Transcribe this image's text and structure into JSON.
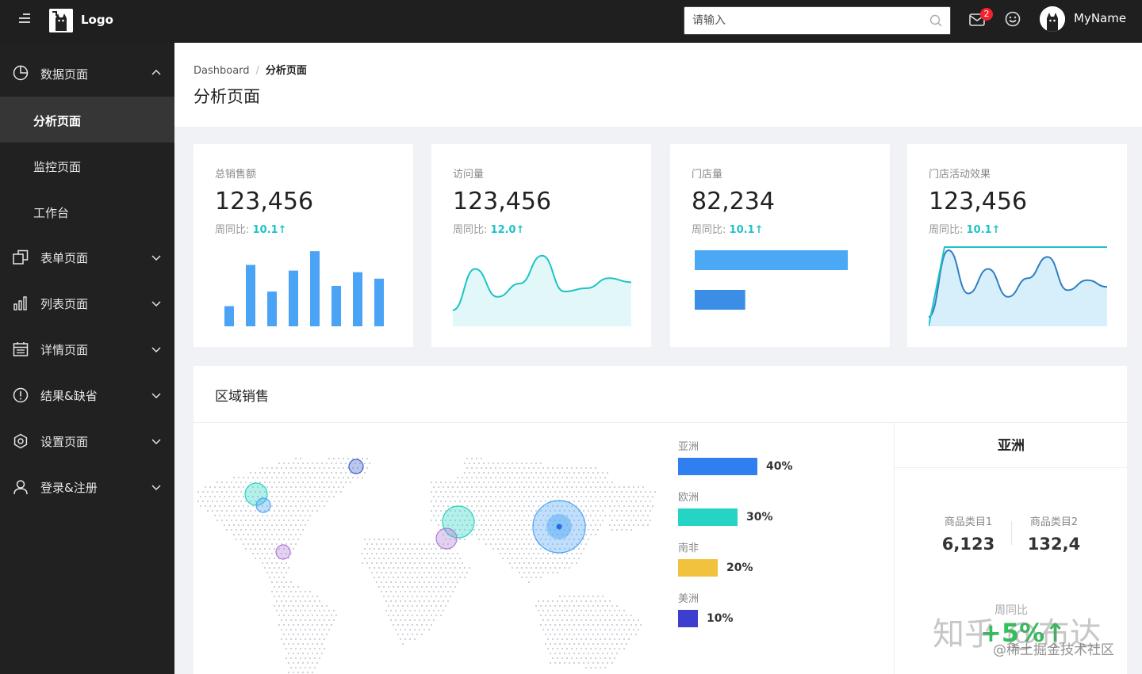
{
  "header": {
    "logo_text": "Logo",
    "search_placeholder": "请输入",
    "notification_count": "2",
    "username": "MyName"
  },
  "sidebar": {
    "items": [
      {
        "label": "数据页面",
        "icon": "pie-chart-icon",
        "expanded": true,
        "children": [
          {
            "label": "分析页面",
            "active": true
          },
          {
            "label": "监控页面",
            "active": false
          },
          {
            "label": "工作台",
            "active": false
          }
        ]
      },
      {
        "label": "表单页面",
        "icon": "form-icon",
        "expanded": false
      },
      {
        "label": "列表页面",
        "icon": "bar-chart-icon",
        "expanded": false
      },
      {
        "label": "详情页面",
        "icon": "calendar-icon",
        "expanded": false
      },
      {
        "label": "结果&缺省",
        "icon": "info-circle-icon",
        "expanded": false
      },
      {
        "label": "设置页面",
        "icon": "settings-icon",
        "expanded": false
      },
      {
        "label": "登录&注册",
        "icon": "user-icon",
        "expanded": false
      }
    ]
  },
  "breadcrumb": {
    "root": "Dashboard",
    "separator": "/",
    "current": "分析页面"
  },
  "page_title": "分析页面",
  "cards": [
    {
      "label": "总销售额",
      "value": "123,456",
      "trend_label": "周同比:",
      "trend_value": "10.1↑",
      "chart": "bar"
    },
    {
      "label": "访问量",
      "value": "123,456",
      "trend_label": "周同比:",
      "trend_value": "12.0↑",
      "chart": "area"
    },
    {
      "label": "门店量",
      "value": "82,234",
      "trend_label": "周同比:",
      "trend_value": "10.1↑",
      "chart": "hbar"
    },
    {
      "label": "门店活动效果",
      "value": "123,456",
      "trend_label": "周同比:",
      "trend_value": "10.1↑",
      "chart": "area"
    }
  ],
  "chart_data": [
    {
      "type": "bar",
      "values": [
        25,
        76,
        43,
        69,
        93,
        50,
        67,
        59
      ],
      "ylim": [
        0,
        100
      ],
      "color": "#4ba3f5"
    },
    {
      "type": "area",
      "values": [
        10,
        72,
        30,
        50,
        92,
        38,
        43,
        58,
        52
      ],
      "ylim": [
        0,
        100
      ],
      "color": "#1ec3c7",
      "fill": "#e2f8f8"
    },
    {
      "type": "bar",
      "orientation": "horizontal",
      "values": [
        100,
        33
      ],
      "xlim": [
        0,
        100
      ],
      "colors": [
        "#4aa8f5",
        "#3a8ee6"
      ]
    },
    {
      "type": "area",
      "values": [
        0,
        100,
        35,
        72,
        30,
        58,
        90,
        40,
        55,
        45
      ],
      "ylim": [
        0,
        100
      ],
      "colors": [
        "#1ec3c7",
        "#2e7fc4"
      ],
      "fill": "#d7eefb"
    },
    {
      "type": "bar",
      "orientation": "horizontal",
      "categories": [
        "亚洲",
        "欧洲",
        "南非",
        "美洲"
      ],
      "values": [
        40,
        30,
        20,
        10
      ],
      "colors": [
        "#2f7ff0",
        "#25d4c4",
        "#f0c23d",
        "#3c3fcd"
      ]
    }
  ],
  "region": {
    "title": "区域销售",
    "legend": [
      {
        "name": "亚洲",
        "pct": "40%",
        "value": 40,
        "color": "#2f7ff0"
      },
      {
        "name": "欧洲",
        "pct": "30%",
        "value": 30,
        "color": "#25d4c4"
      },
      {
        "name": "南非",
        "pct": "20%",
        "value": 20,
        "color": "#f0c23d"
      },
      {
        "name": "美洲",
        "pct": "10%",
        "value": 10,
        "color": "#3c3fcd"
      }
    ],
    "detail": {
      "title": "亚洲",
      "stats": [
        {
          "label": "商品类目1",
          "value": "6,123"
        },
        {
          "label": "商品类目2",
          "value": "132,4"
        }
      ],
      "yoy_label": "周同比",
      "yoy_value": "+5%↑"
    }
  },
  "watermark": {
    "main": "知乎 @布达",
    "sub": "@稀土掘金技术社区"
  }
}
